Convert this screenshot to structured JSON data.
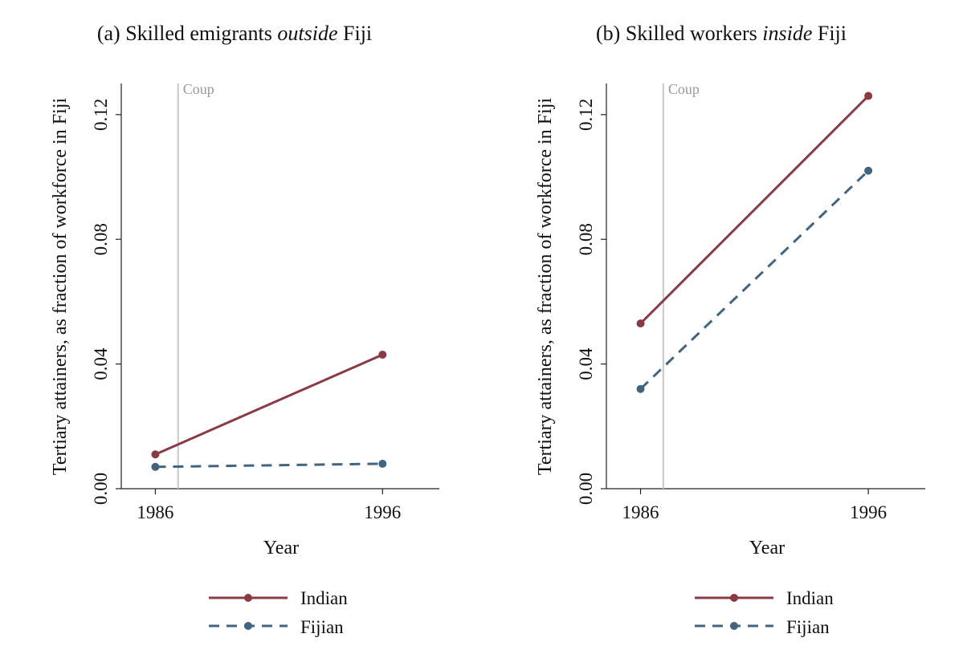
{
  "chart_data": [
    {
      "type": "line",
      "title_prefix": "(a) Skilled emigrants ",
      "title_italic": "outside",
      "title_suffix": " Fiji",
      "xlabel": "Year",
      "ylabel": "Tertiary attainers, as fraction of workforce in Fiji",
      "x": [
        1986,
        1996
      ],
      "xticks": [
        "1986",
        "1996"
      ],
      "yticks": [
        "0.00",
        "0.04",
        "0.08",
        "0.12"
      ],
      "ylim": [
        0,
        0.13
      ],
      "xlim": [
        1984.5,
        1998.5
      ],
      "annotation": {
        "label": "Coup",
        "x": 1987
      },
      "series": [
        {
          "name": "Indian",
          "values": [
            0.011,
            0.043
          ],
          "color": "#8b3a44",
          "dash": "solid"
        },
        {
          "name": "Fijian",
          "values": [
            0.007,
            0.008
          ],
          "color": "#41657f",
          "dash": "dashed"
        }
      ]
    },
    {
      "type": "line",
      "title_prefix": "(b) Skilled workers ",
      "title_italic": "inside",
      "title_suffix": " Fiji",
      "xlabel": "Year",
      "ylabel": "Tertiary attainers, as fraction of workforce in Fiji",
      "x": [
        1986,
        1996
      ],
      "xticks": [
        "1986",
        "1996"
      ],
      "yticks": [
        "0.00",
        "0.04",
        "0.08",
        "0.12"
      ],
      "ylim": [
        0,
        0.13
      ],
      "xlim": [
        1984.5,
        1998.5
      ],
      "annotation": {
        "label": "Coup",
        "x": 1987
      },
      "series": [
        {
          "name": "Indian",
          "values": [
            0.053,
            0.126
          ],
          "color": "#8b3a44",
          "dash": "solid"
        },
        {
          "name": "Fijian",
          "values": [
            0.032,
            0.102
          ],
          "color": "#41657f",
          "dash": "dashed"
        }
      ]
    }
  ]
}
